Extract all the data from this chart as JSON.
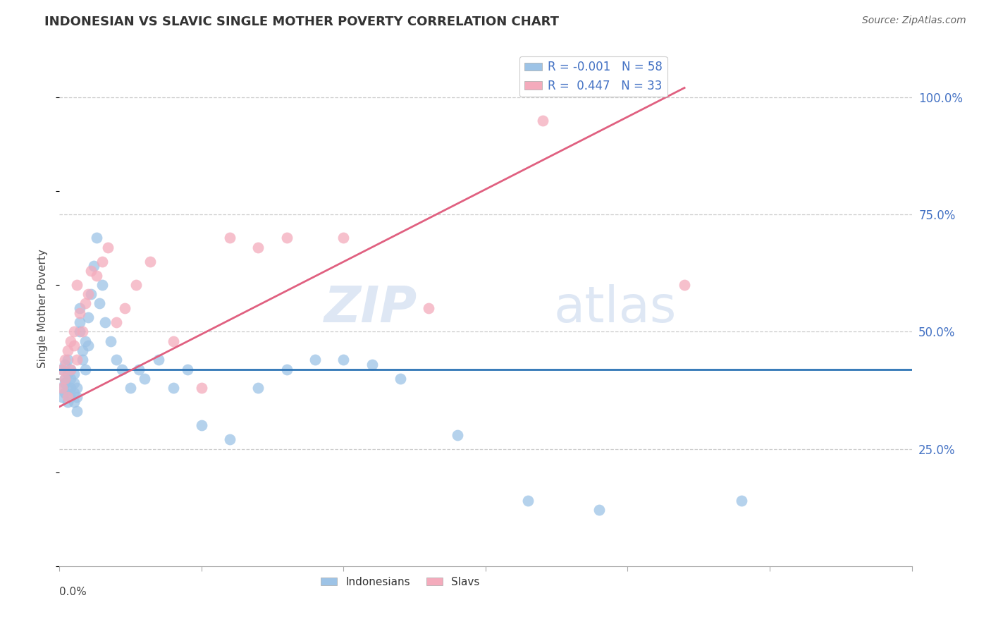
{
  "title": "INDONESIAN VS SLAVIC SINGLE MOTHER POVERTY CORRELATION CHART",
  "source": "Source: ZipAtlas.com",
  "ylabel": "Single Mother Poverty",
  "xmin": 0.0,
  "xmax": 0.3,
  "ymin": 0.0,
  "ymax": 1.1,
  "R_indonesian": -0.001,
  "N_indonesian": 58,
  "R_slavic": 0.447,
  "N_slavic": 33,
  "legend_label_1": "Indonesians",
  "legend_label_2": "Slavs",
  "blue_color": "#9DC3E6",
  "pink_color": "#F4ABBC",
  "blue_line_color": "#2F75B6",
  "pink_line_color": "#E06080",
  "watermark_zip": "ZIP",
  "watermark_atlas": "atlas",
  "indonesian_x": [
    0.001,
    0.001,
    0.001,
    0.002,
    0.002,
    0.002,
    0.002,
    0.003,
    0.003,
    0.003,
    0.003,
    0.004,
    0.004,
    0.004,
    0.004,
    0.005,
    0.005,
    0.005,
    0.005,
    0.006,
    0.006,
    0.006,
    0.007,
    0.007,
    0.007,
    0.008,
    0.008,
    0.009,
    0.009,
    0.01,
    0.01,
    0.011,
    0.012,
    0.013,
    0.014,
    0.015,
    0.016,
    0.018,
    0.02,
    0.022,
    0.025,
    0.028,
    0.03,
    0.035,
    0.04,
    0.045,
    0.05,
    0.06,
    0.07,
    0.08,
    0.09,
    0.1,
    0.11,
    0.12,
    0.14,
    0.165,
    0.19,
    0.24
  ],
  "indonesian_y": [
    0.38,
    0.42,
    0.36,
    0.4,
    0.43,
    0.37,
    0.39,
    0.41,
    0.38,
    0.35,
    0.44,
    0.36,
    0.42,
    0.38,
    0.4,
    0.35,
    0.37,
    0.39,
    0.41,
    0.33,
    0.36,
    0.38,
    0.55,
    0.5,
    0.52,
    0.46,
    0.44,
    0.48,
    0.42,
    0.47,
    0.53,
    0.58,
    0.64,
    0.7,
    0.56,
    0.6,
    0.52,
    0.48,
    0.44,
    0.42,
    0.38,
    0.42,
    0.4,
    0.44,
    0.38,
    0.42,
    0.3,
    0.27,
    0.38,
    0.42,
    0.44,
    0.44,
    0.43,
    0.4,
    0.28,
    0.14,
    0.12,
    0.14
  ],
  "slavic_x": [
    0.001,
    0.001,
    0.002,
    0.002,
    0.003,
    0.003,
    0.004,
    0.004,
    0.005,
    0.005,
    0.006,
    0.006,
    0.007,
    0.008,
    0.009,
    0.01,
    0.011,
    0.013,
    0.015,
    0.017,
    0.02,
    0.023,
    0.027,
    0.032,
    0.04,
    0.05,
    0.06,
    0.07,
    0.08,
    0.1,
    0.13,
    0.17,
    0.22
  ],
  "slavic_y": [
    0.38,
    0.42,
    0.4,
    0.44,
    0.36,
    0.46,
    0.42,
    0.48,
    0.47,
    0.5,
    0.44,
    0.6,
    0.54,
    0.5,
    0.56,
    0.58,
    0.63,
    0.62,
    0.65,
    0.68,
    0.52,
    0.55,
    0.6,
    0.65,
    0.48,
    0.38,
    0.7,
    0.68,
    0.7,
    0.7,
    0.55,
    0.95,
    0.6
  ],
  "blue_trend_x": [
    0.0,
    0.3
  ],
  "blue_trend_y": [
    0.42,
    0.42
  ],
  "pink_trend_x": [
    0.0,
    0.22
  ],
  "pink_trend_y": [
    0.34,
    1.02
  ]
}
